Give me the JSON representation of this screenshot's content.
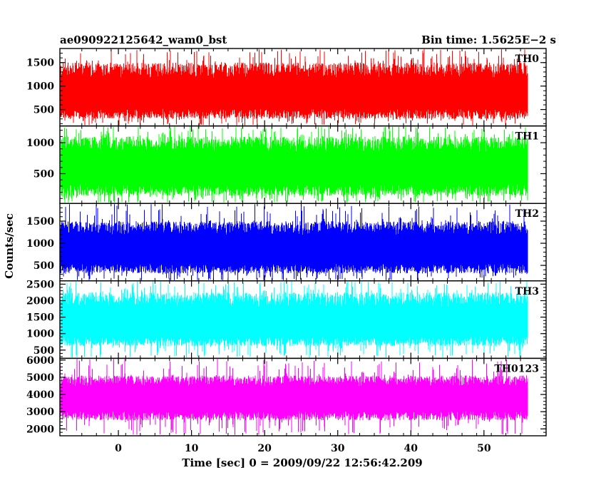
{
  "chart_data": {
    "type": "line",
    "title_left": "ae090922125642_wam0_bst",
    "title_right": "Bin time: 1.5625E−2 s",
    "xlabel": "Time [sec] 0 = 2009/09/22 12:56:42.209",
    "ylabel": "Counts/sec",
    "x_ticks": [
      0,
      10,
      20,
      30,
      40,
      50
    ],
    "xlim": [
      -8,
      58.5
    ],
    "data_x_range": [
      -8,
      56
    ],
    "grid": false,
    "panels": [
      {
        "name": "TH0",
        "color": "#ff0000",
        "ylim": [
          150,
          1800
        ],
        "yticks": [
          500,
          1000,
          1500
        ],
        "mean": 780,
        "low": 300,
        "high": 1500,
        "peak": 1800,
        "floor": 160
      },
      {
        "name": "TH1",
        "color": "#00ff00",
        "ylim": [
          20,
          1270
        ],
        "yticks": [
          500,
          1000
        ],
        "mean": 560,
        "low": 140,
        "high": 1100,
        "peak": 1270,
        "floor": 30
      },
      {
        "name": "TH2",
        "color": "#0000ff",
        "ylim": [
          150,
          1900
        ],
        "yticks": [
          500,
          1000,
          1500
        ],
        "mean": 800,
        "low": 320,
        "high": 1500,
        "peak": 1900,
        "floor": 150
      },
      {
        "name": "TH3",
        "color": "#00ffff",
        "ylim": [
          250,
          2600
        ],
        "yticks": [
          500,
          1000,
          1500,
          2000,
          2500
        ],
        "mean": 1290,
        "low": 620,
        "high": 2250,
        "peak": 2600,
        "floor": 260
      },
      {
        "name": "TH0123",
        "color": "#ff00ff",
        "ylim": [
          1600,
          6100
        ],
        "yticks": [
          2000,
          3000,
          4000,
          5000,
          6000
        ],
        "mean": 3700,
        "low": 2500,
        "high": 5100,
        "peak": 6100,
        "floor": 1650
      }
    ]
  }
}
